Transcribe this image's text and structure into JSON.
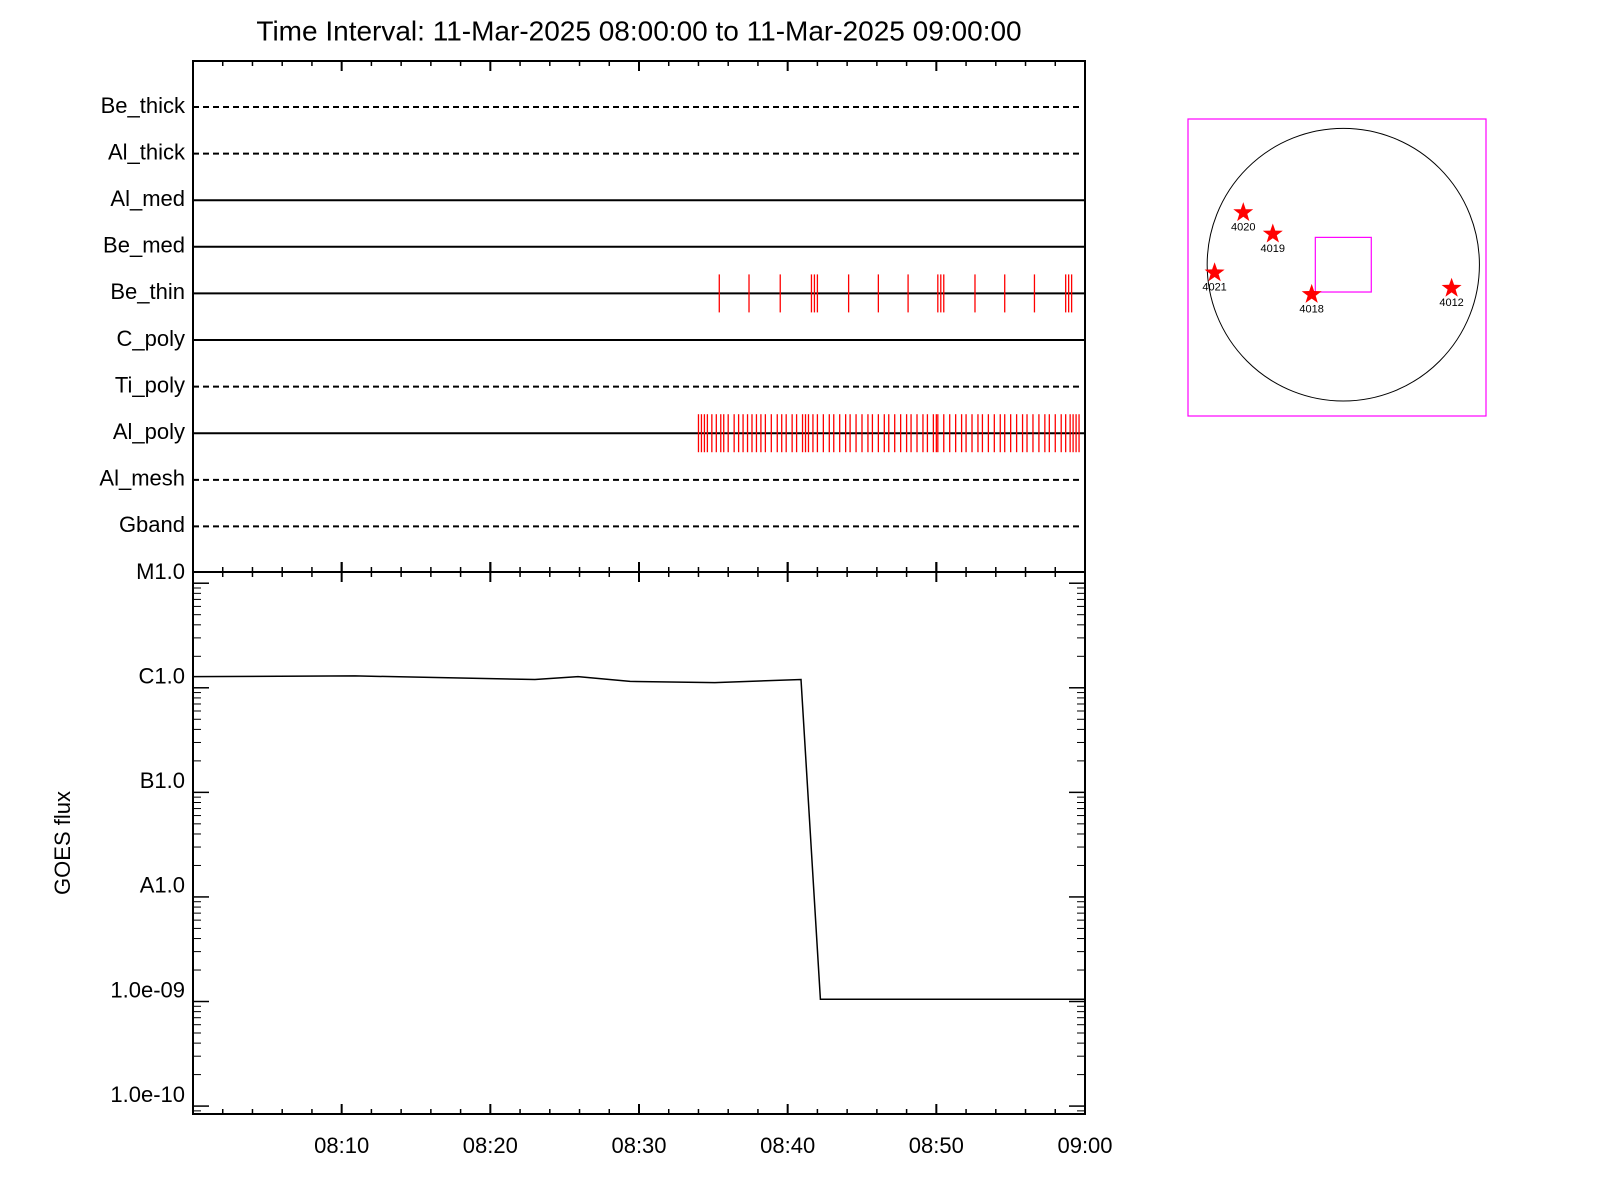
{
  "chart_data": [
    {
      "type": "event",
      "title": "Time Interval: 11-Mar-2025 08:00:00 to 11-Mar-2025 09:00:00",
      "xlim": [
        0,
        60
      ],
      "xticks": [
        0,
        10,
        20,
        30,
        40,
        50,
        60
      ],
      "xminorticks": [
        2,
        4,
        6,
        8,
        12,
        14,
        16,
        18,
        22,
        24,
        26,
        28,
        32,
        34,
        36,
        38,
        42,
        44,
        46,
        48,
        52,
        54,
        56,
        58
      ],
      "color": "#ff0000",
      "series": [
        {
          "name": "Be_thick",
          "style": "dashed",
          "values": []
        },
        {
          "name": "Al_thick",
          "style": "dashed",
          "values": []
        },
        {
          "name": "Al_med",
          "style": "solid",
          "values": []
        },
        {
          "name": "Be_med",
          "style": "solid",
          "values": []
        },
        {
          "name": "Be_thin",
          "style": "solid",
          "values": [
            35.4,
            37.4,
            39.5,
            41.6,
            41.8,
            42.0,
            44.1,
            46.1,
            48.1,
            50.1,
            50.3,
            50.5,
            52.6,
            54.6,
            56.6,
            58.7,
            58.9,
            59.1
          ]
        },
        {
          "name": "C_poly",
          "style": "solid",
          "values": []
        },
        {
          "name": "Ti_poly",
          "style": "dashed",
          "values": []
        },
        {
          "name": "Al_poly",
          "style": "solid",
          "values": [
            34.0,
            34.2,
            34.4,
            34.6,
            34.9,
            35.2,
            35.5,
            35.7,
            36.0,
            36.4,
            36.7,
            37.0,
            37.3,
            37.6,
            37.9,
            38.2,
            38.5,
            38.9,
            39.3,
            39.6,
            39.9,
            40.3,
            40.6,
            41.0,
            41.2,
            41.4,
            41.7,
            42.0,
            42.4,
            42.8,
            43.1,
            43.5,
            43.9,
            44.2,
            44.6,
            45.0,
            45.4,
            45.7,
            46.1,
            46.5,
            46.8,
            47.2,
            47.6,
            48.0,
            48.3,
            48.7,
            49.1,
            49.4,
            49.8,
            50.0,
            50.1,
            50.5,
            50.9,
            51.3,
            51.7,
            52.0,
            52.4,
            52.8,
            53.1,
            53.5,
            53.9,
            54.3,
            54.6,
            55.0,
            55.4,
            55.8,
            56.1,
            56.5,
            56.9,
            57.3,
            57.6,
            58.0,
            58.4,
            58.7,
            59.0,
            59.2,
            59.4,
            59.6
          ]
        },
        {
          "name": "Al_mesh",
          "style": "dashed",
          "values": []
        },
        {
          "name": "Gband",
          "style": "dashed",
          "values": []
        }
      ]
    },
    {
      "type": "line",
      "ylabel": "GOES flux",
      "log_scale": true,
      "color": "#000000",
      "xlim": [
        0,
        60
      ],
      "xticks": [
        {
          "value": 10,
          "label": "08:10"
        },
        {
          "value": 20,
          "label": "08:20"
        },
        {
          "value": 30,
          "label": "08:30"
        },
        {
          "value": 40,
          "label": "08:40"
        },
        {
          "value": 50,
          "label": "08:50"
        },
        {
          "value": 60,
          "label": "09:00"
        }
      ],
      "xminorticks": [
        2,
        4,
        6,
        8,
        12,
        14,
        16,
        18,
        22,
        24,
        26,
        28,
        32,
        34,
        36,
        38,
        42,
        44,
        46,
        48,
        52,
        54,
        56,
        58
      ],
      "ylim": [
        8.4e-11,
        1.28e-05
      ],
      "yticks": [
        {
          "value": 1e-05,
          "label": "M1.0"
        },
        {
          "value": 1e-06,
          "label": "C1.0"
        },
        {
          "value": 1e-07,
          "label": "B1.0"
        },
        {
          "value": 1e-08,
          "label": "A1.0"
        },
        {
          "value": 1e-09,
          "label": "1.0e-09"
        },
        {
          "value": 1e-10,
          "label": "1.0e-10"
        }
      ],
      "yminorticks": [
        9e-11,
        2e-10,
        3e-10,
        4e-10,
        5e-10,
        6e-10,
        7e-10,
        8e-10,
        9e-10,
        2e-09,
        3e-09,
        4e-09,
        5e-09,
        6e-09,
        7e-09,
        8e-09,
        9e-09,
        2e-08,
        3e-08,
        4e-08,
        5e-08,
        6e-08,
        7e-08,
        8e-08,
        9e-08,
        2e-07,
        3e-07,
        4e-07,
        5e-07,
        6e-07,
        7e-07,
        8e-07,
        9e-07,
        2e-06,
        3e-06,
        4e-06,
        5e-06,
        6e-06,
        7e-06,
        8e-06,
        9e-06
      ],
      "x": [
        0,
        10.9,
        23.0,
        25.9,
        29.4,
        35.1,
        40.9,
        42.2,
        60
      ],
      "values": [
        1.28e-06,
        1.3e-06,
        1.2e-06,
        1.28e-06,
        1.15e-06,
        1.12e-06,
        1.2e-06,
        1.05e-09,
        1.05e-09
      ]
    },
    {
      "type": "map",
      "xlim": [
        -1110,
        1020
      ],
      "ylim": [
        -1080,
        1040
      ],
      "frame_color": "#ff00ff",
      "marker_color": "#ff0000",
      "disk_radius": 973,
      "fov": {
        "x": 0,
        "y": 0,
        "width": 400,
        "height": 390
      },
      "regions": [
        {
          "label": "4020",
          "x": -715,
          "y": 372
        },
        {
          "label": "4019",
          "x": -504,
          "y": 219
        },
        {
          "label": "4021",
          "x": -920,
          "y": -58
        },
        {
          "label": "4018",
          "x": -226,
          "y": -212
        },
        {
          "label": "4012",
          "x": 774,
          "y": -168
        }
      ]
    }
  ]
}
